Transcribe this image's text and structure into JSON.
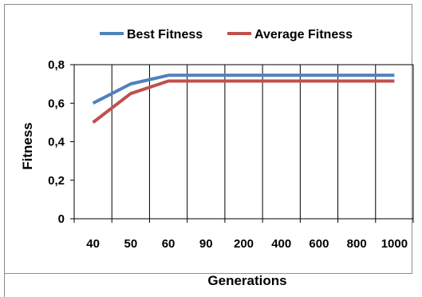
{
  "chart_data": {
    "type": "line",
    "categories": [
      "40",
      "50",
      "60",
      "90",
      "200",
      "400",
      "600",
      "800",
      "1000"
    ],
    "series": [
      {
        "name": "Best Fitness",
        "color": "#4f81bd",
        "values": [
          0.6,
          0.7,
          0.745,
          0.745,
          0.745,
          0.745,
          0.745,
          0.745,
          0.745
        ]
      },
      {
        "name": "Average Fitness",
        "color": "#c0504d",
        "values": [
          0.5,
          0.65,
          0.715,
          0.715,
          0.715,
          0.715,
          0.715,
          0.715,
          0.715
        ]
      }
    ],
    "yticks": [
      "0",
      "0,2",
      "0,4",
      "0,6",
      "0,8"
    ],
    "ylim": [
      0,
      0.8
    ],
    "xlabel": "Generations",
    "ylabel": "Fitness",
    "legend_position": "top",
    "grid": "vertical"
  }
}
